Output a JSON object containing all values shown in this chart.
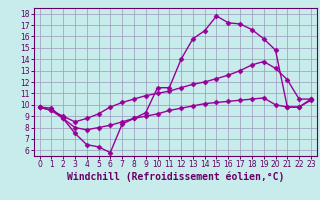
{
  "xlabel": "Windchill (Refroidissement éolien,°C)",
  "background_color": "#c8ecec",
  "line_color": "#990099",
  "xlim": [
    -0.5,
    23.5
  ],
  "ylim": [
    5.5,
    18.5
  ],
  "xticks": [
    0,
    1,
    2,
    3,
    4,
    5,
    6,
    7,
    8,
    9,
    10,
    11,
    12,
    13,
    14,
    15,
    16,
    17,
    18,
    19,
    20,
    21,
    22,
    23
  ],
  "yticks": [
    6,
    7,
    8,
    9,
    10,
    11,
    12,
    13,
    14,
    15,
    16,
    17,
    18
  ],
  "series": [
    [
      9.8,
      9.7,
      8.8,
      7.5,
      6.5,
      6.3,
      5.8,
      8.3,
      8.8,
      9.3,
      11.5,
      11.5,
      14.0,
      15.8,
      16.5,
      17.8,
      17.2,
      17.1,
      16.6,
      15.8,
      14.8,
      9.8,
      9.8,
      10.5
    ],
    [
      9.8,
      9.5,
      9.0,
      8.5,
      8.8,
      9.2,
      9.8,
      10.2,
      10.5,
      10.8,
      11.0,
      11.2,
      11.5,
      11.8,
      12.0,
      12.3,
      12.6,
      13.0,
      13.5,
      13.8,
      13.2,
      12.2,
      10.5,
      10.5
    ],
    [
      9.8,
      9.5,
      8.8,
      8.0,
      7.8,
      8.0,
      8.2,
      8.5,
      8.8,
      9.0,
      9.2,
      9.5,
      9.7,
      9.9,
      10.1,
      10.2,
      10.3,
      10.4,
      10.5,
      10.6,
      10.0,
      9.8,
      9.8,
      10.4
    ]
  ],
  "marker": "D",
  "markersize": 2.5,
  "linewidth": 1.0,
  "grid_color": "#9999bb",
  "font_color": "#660066",
  "tick_fontsize": 5.5,
  "xlabel_fontsize": 7.0
}
